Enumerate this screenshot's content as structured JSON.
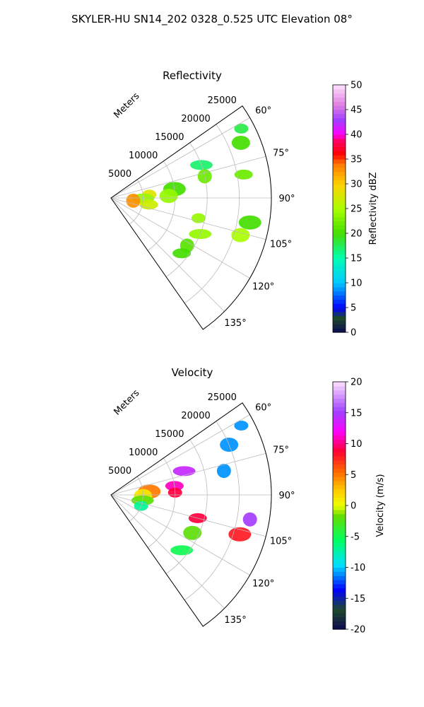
{
  "figure": {
    "suptitle": "SKYLER-HU  SN14_202  0328_0.525 UTC Elevation 08°"
  },
  "chart_data": [
    {
      "type": "ppi-sector",
      "title": "Reflectivity",
      "range_label": "Meters",
      "range_ticks": [
        5000,
        10000,
        15000,
        20000,
        25000
      ],
      "range_max": 25000,
      "azimuth_range": [
        55,
        145
      ],
      "azimuth_ticks": [
        "60°",
        "75°",
        "90°",
        "105°",
        "120°",
        "135°"
      ],
      "azimuth_tick_values": [
        60,
        75,
        90,
        105,
        120,
        135
      ],
      "colorbar": {
        "label": "Reflectivity dBZ",
        "min": 0,
        "max": 50,
        "ticks": [
          0,
          5,
          10,
          15,
          20,
          25,
          30,
          35,
          40,
          45,
          50
        ]
      },
      "echoes": [
        {
          "az": 62,
          "r": 23000,
          "value": 18
        },
        {
          "az": 67,
          "r": 22000,
          "value": 20
        },
        {
          "az": 70,
          "r": 15000,
          "value": 17
        },
        {
          "az": 77,
          "r": 15000,
          "value": 22
        },
        {
          "az": 80,
          "r": 21000,
          "value": 22
        },
        {
          "az": 82,
          "r": 10000,
          "value": 20
        },
        {
          "az": 85,
          "r": 6000,
          "value": 28
        },
        {
          "az": 88,
          "r": 9000,
          "value": 24
        },
        {
          "az": 91,
          "r": 5000,
          "value": 24
        },
        {
          "az": 97,
          "r": 3500,
          "value": 33
        },
        {
          "az": 100,
          "r": 6000,
          "value": 27
        },
        {
          "az": 100,
          "r": 22000,
          "value": 20
        },
        {
          "az": 103,
          "r": 14000,
          "value": 24
        },
        {
          "az": 106,
          "r": 21000,
          "value": 25
        },
        {
          "az": 112,
          "r": 15000,
          "value": 24
        },
        {
          "az": 122,
          "r": 14000,
          "value": 21
        },
        {
          "az": 128,
          "r": 14000,
          "value": 20
        }
      ]
    },
    {
      "type": "ppi-sector",
      "title": "Velocity",
      "range_label": "Meters",
      "range_ticks": [
        5000,
        10000,
        15000,
        20000,
        25000
      ],
      "range_max": 25000,
      "azimuth_range": [
        55,
        145
      ],
      "azimuth_ticks": [
        "60°",
        "75°",
        "90°",
        "105°",
        "120°",
        "135°"
      ],
      "azimuth_tick_values": [
        60,
        75,
        90,
        105,
        120,
        135
      ],
      "colorbar": {
        "label": "Velocity (m/s)",
        "min": -20,
        "max": 20,
        "ticks": [
          -20,
          -15,
          -10,
          -5,
          0,
          5,
          10,
          15,
          20
        ]
      },
      "echoes": [
        {
          "az": 62,
          "r": 23000,
          "value": -11
        },
        {
          "az": 67,
          "r": 20000,
          "value": -11
        },
        {
          "az": 72,
          "r": 12000,
          "value": 14
        },
        {
          "az": 78,
          "r": 18000,
          "value": -11
        },
        {
          "az": 82,
          "r": 10000,
          "value": 11
        },
        {
          "az": 85,
          "r": 6000,
          "value": 5
        },
        {
          "az": 88,
          "r": 10000,
          "value": 9
        },
        {
          "az": 92,
          "r": 5000,
          "value": 1
        },
        {
          "az": 100,
          "r": 5000,
          "value": -2
        },
        {
          "az": 100,
          "r": 22000,
          "value": 15
        },
        {
          "az": 105,
          "r": 14000,
          "value": 9
        },
        {
          "az": 107,
          "r": 21000,
          "value": 8
        },
        {
          "az": 110,
          "r": 5000,
          "value": -7
        },
        {
          "az": 115,
          "r": 14000,
          "value": -2
        },
        {
          "az": 128,
          "r": 14000,
          "value": -5
        }
      ]
    }
  ]
}
